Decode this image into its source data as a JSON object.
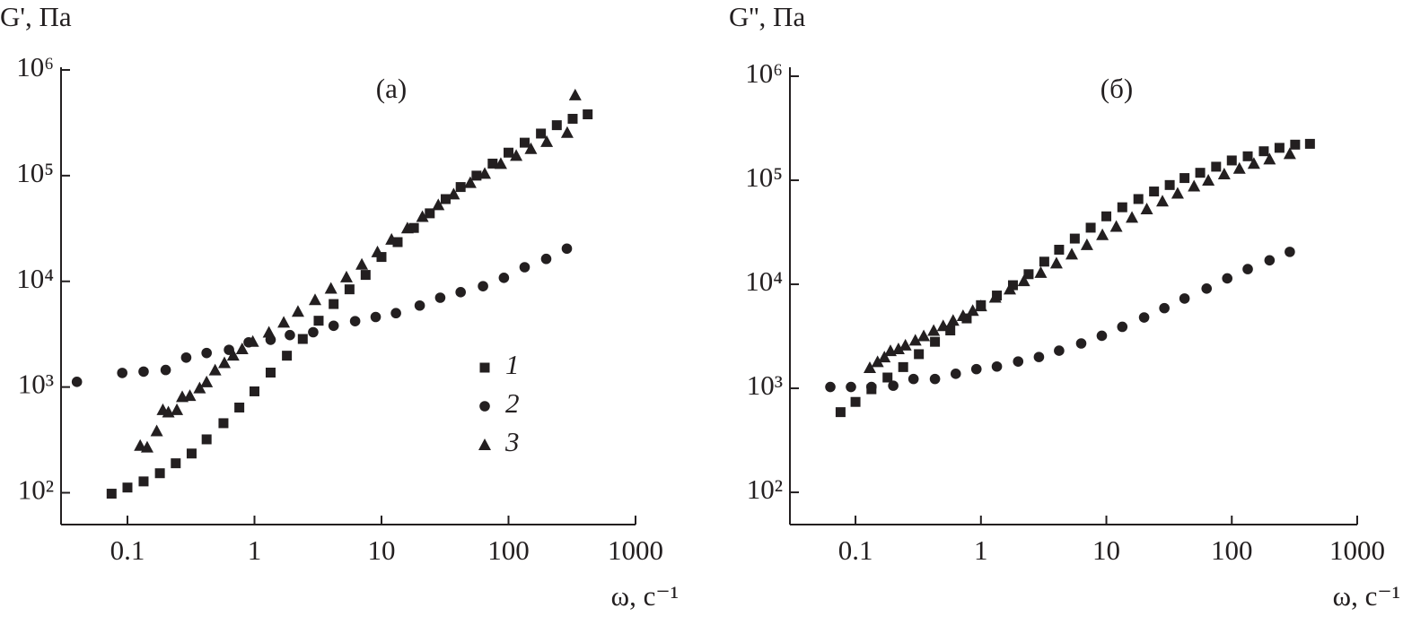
{
  "chart_data": [
    {
      "type": "scatter",
      "title": "(а)",
      "y_label": "G', Па",
      "x_label": "ω, с⁻¹",
      "log_x": true,
      "log_y": true,
      "legend": "center",
      "xlim": [
        0.03,
        1000
      ],
      "xticks": [
        0.1,
        1,
        10,
        100,
        1000
      ],
      "ylim": [
        50,
        1060000
      ],
      "yticks": [
        {
          "value": 100,
          "label": "10²"
        },
        {
          "value": 1000,
          "label": "10³"
        },
        {
          "value": 10000,
          "label": "10⁴"
        },
        {
          "value": 100000,
          "label": "10⁵"
        },
        {
          "value": 1000000,
          "label": "10⁶"
        }
      ],
      "series": [
        {
          "name": "1",
          "marker": "square",
          "color": "#231f20",
          "x": [
            0.075,
            0.1,
            0.134,
            0.18,
            0.24,
            0.32,
            0.42,
            0.57,
            0.76,
            1.0,
            1.34,
            1.8,
            2.4,
            3.2,
            4.2,
            5.6,
            7.5,
            10,
            13.4,
            18,
            24,
            32,
            42,
            56,
            75,
            100,
            134,
            180,
            240,
            320,
            420
          ],
          "values": [
            98,
            112,
            128,
            153,
            190,
            235,
            320,
            455,
            640,
            910,
            1370,
            1980,
            2850,
            4240,
            6100,
            8400,
            11500,
            17000,
            23500,
            32000,
            44000,
            60000,
            78000,
            100000,
            130000,
            165000,
            205000,
            250000,
            300000,
            345000,
            380000
          ]
        },
        {
          "name": "2",
          "marker": "circle",
          "color": "#231f20",
          "x": [
            0.04,
            0.091,
            0.134,
            0.2,
            0.29,
            0.42,
            0.63,
            0.9,
            1.34,
            1.9,
            2.9,
            4.2,
            6.2,
            9,
            13,
            20,
            29,
            42,
            63,
            92,
            134,
            198,
            288
          ],
          "values": [
            1120,
            1360,
            1400,
            1450,
            1900,
            2100,
            2250,
            2650,
            2800,
            3100,
            3300,
            3800,
            4200,
            4600,
            5000,
            5900,
            7000,
            7900,
            9000,
            10800,
            13600,
            16300,
            20400
          ]
        },
        {
          "name": "3",
          "marker": "triangle",
          "color": "#231f20",
          "x": [
            0.126,
            0.143,
            0.17,
            0.19,
            0.21,
            0.245,
            0.27,
            0.31,
            0.37,
            0.42,
            0.49,
            0.58,
            0.68,
            0.8,
            0.97,
            1.3,
            1.7,
            2.2,
            3,
            4,
            5.3,
            7,
            9.3,
            12,
            16,
            21,
            28,
            37,
            50,
            65,
            87,
            115,
            150,
            200,
            290,
            335
          ],
          "values": [
            280,
            270,
            385,
            610,
            580,
            610,
            810,
            830,
            980,
            1120,
            1450,
            1700,
            2000,
            2300,
            2700,
            3300,
            4100,
            5200,
            6700,
            8600,
            11000,
            14500,
            19000,
            25000,
            32000,
            41000,
            53000,
            67000,
            86000,
            105000,
            130000,
            155000,
            180000,
            210000,
            256000,
            580000
          ]
        }
      ]
    },
    {
      "type": "scatter",
      "title": "(б)",
      "y_label": "G'', Па",
      "x_label": "ω, с⁻¹",
      "log_x": true,
      "log_y": true,
      "xlim": [
        0.03,
        1000
      ],
      "xticks": [
        0.1,
        1,
        10,
        100,
        1000
      ],
      "ylim": [
        49,
        1220000
      ],
      "yticks": [
        {
          "value": 100,
          "label": "10²"
        },
        {
          "value": 1000,
          "label": "10³"
        },
        {
          "value": 10000,
          "label": "10⁴"
        },
        {
          "value": 100000,
          "label": "10⁵"
        },
        {
          "value": 1000000,
          "label": "10⁶"
        }
      ],
      "series": [
        {
          "marker": "square",
          "color": "#231f20",
          "x": [
            0.076,
            0.1,
            0.134,
            0.18,
            0.24,
            0.32,
            0.43,
            0.57,
            0.77,
            1.0,
            1.34,
            1.8,
            2.4,
            3.2,
            4.2,
            5.6,
            7.5,
            10,
            13.4,
            18,
            24,
            32,
            42,
            56,
            75,
            100,
            134,
            180,
            240,
            320,
            420
          ],
          "values": [
            590,
            740,
            980,
            1270,
            1600,
            2130,
            2800,
            3600,
            4700,
            6300,
            7800,
            9800,
            12500,
            16500,
            21500,
            27500,
            35000,
            45000,
            55000,
            66000,
            78000,
            90000,
            105000,
            118000,
            135000,
            155000,
            170000,
            190000,
            205000,
            220000,
            224000
          ]
        },
        {
          "marker": "circle",
          "color": "#231f20",
          "x": [
            0.063,
            0.092,
            0.134,
            0.2,
            0.29,
            0.43,
            0.63,
            0.92,
            1.34,
            1.98,
            2.9,
            4.2,
            6.3,
            9.2,
            13.4,
            20,
            29,
            42,
            63,
            92,
            134,
            200,
            290
          ],
          "values": [
            1030,
            1030,
            1030,
            1060,
            1230,
            1230,
            1380,
            1530,
            1620,
            1810,
            2000,
            2300,
            2700,
            3200,
            3900,
            4800,
            5900,
            7300,
            9100,
            11400,
            14000,
            17000,
            20500
          ]
        },
        {
          "marker": "triangle",
          "color": "#231f20",
          "x": [
            0.13,
            0.15,
            0.17,
            0.19,
            0.22,
            0.25,
            0.3,
            0.35,
            0.42,
            0.5,
            0.6,
            0.72,
            0.86,
            1,
            1.3,
            1.7,
            2.2,
            3,
            4,
            5.3,
            7,
            9.3,
            12,
            16,
            21,
            28,
            37,
            50,
            65,
            87,
            115,
            150,
            200,
            290
          ],
          "values": [
            1580,
            1800,
            2000,
            2300,
            2400,
            2600,
            2900,
            3200,
            3600,
            4000,
            4500,
            5000,
            5600,
            6200,
            7500,
            9000,
            10800,
            13000,
            16000,
            19500,
            24000,
            30000,
            36000,
            44000,
            53000,
            63000,
            75000,
            88000,
            100000,
            115000,
            130000,
            145000,
            160000,
            180000
          ]
        }
      ]
    }
  ]
}
